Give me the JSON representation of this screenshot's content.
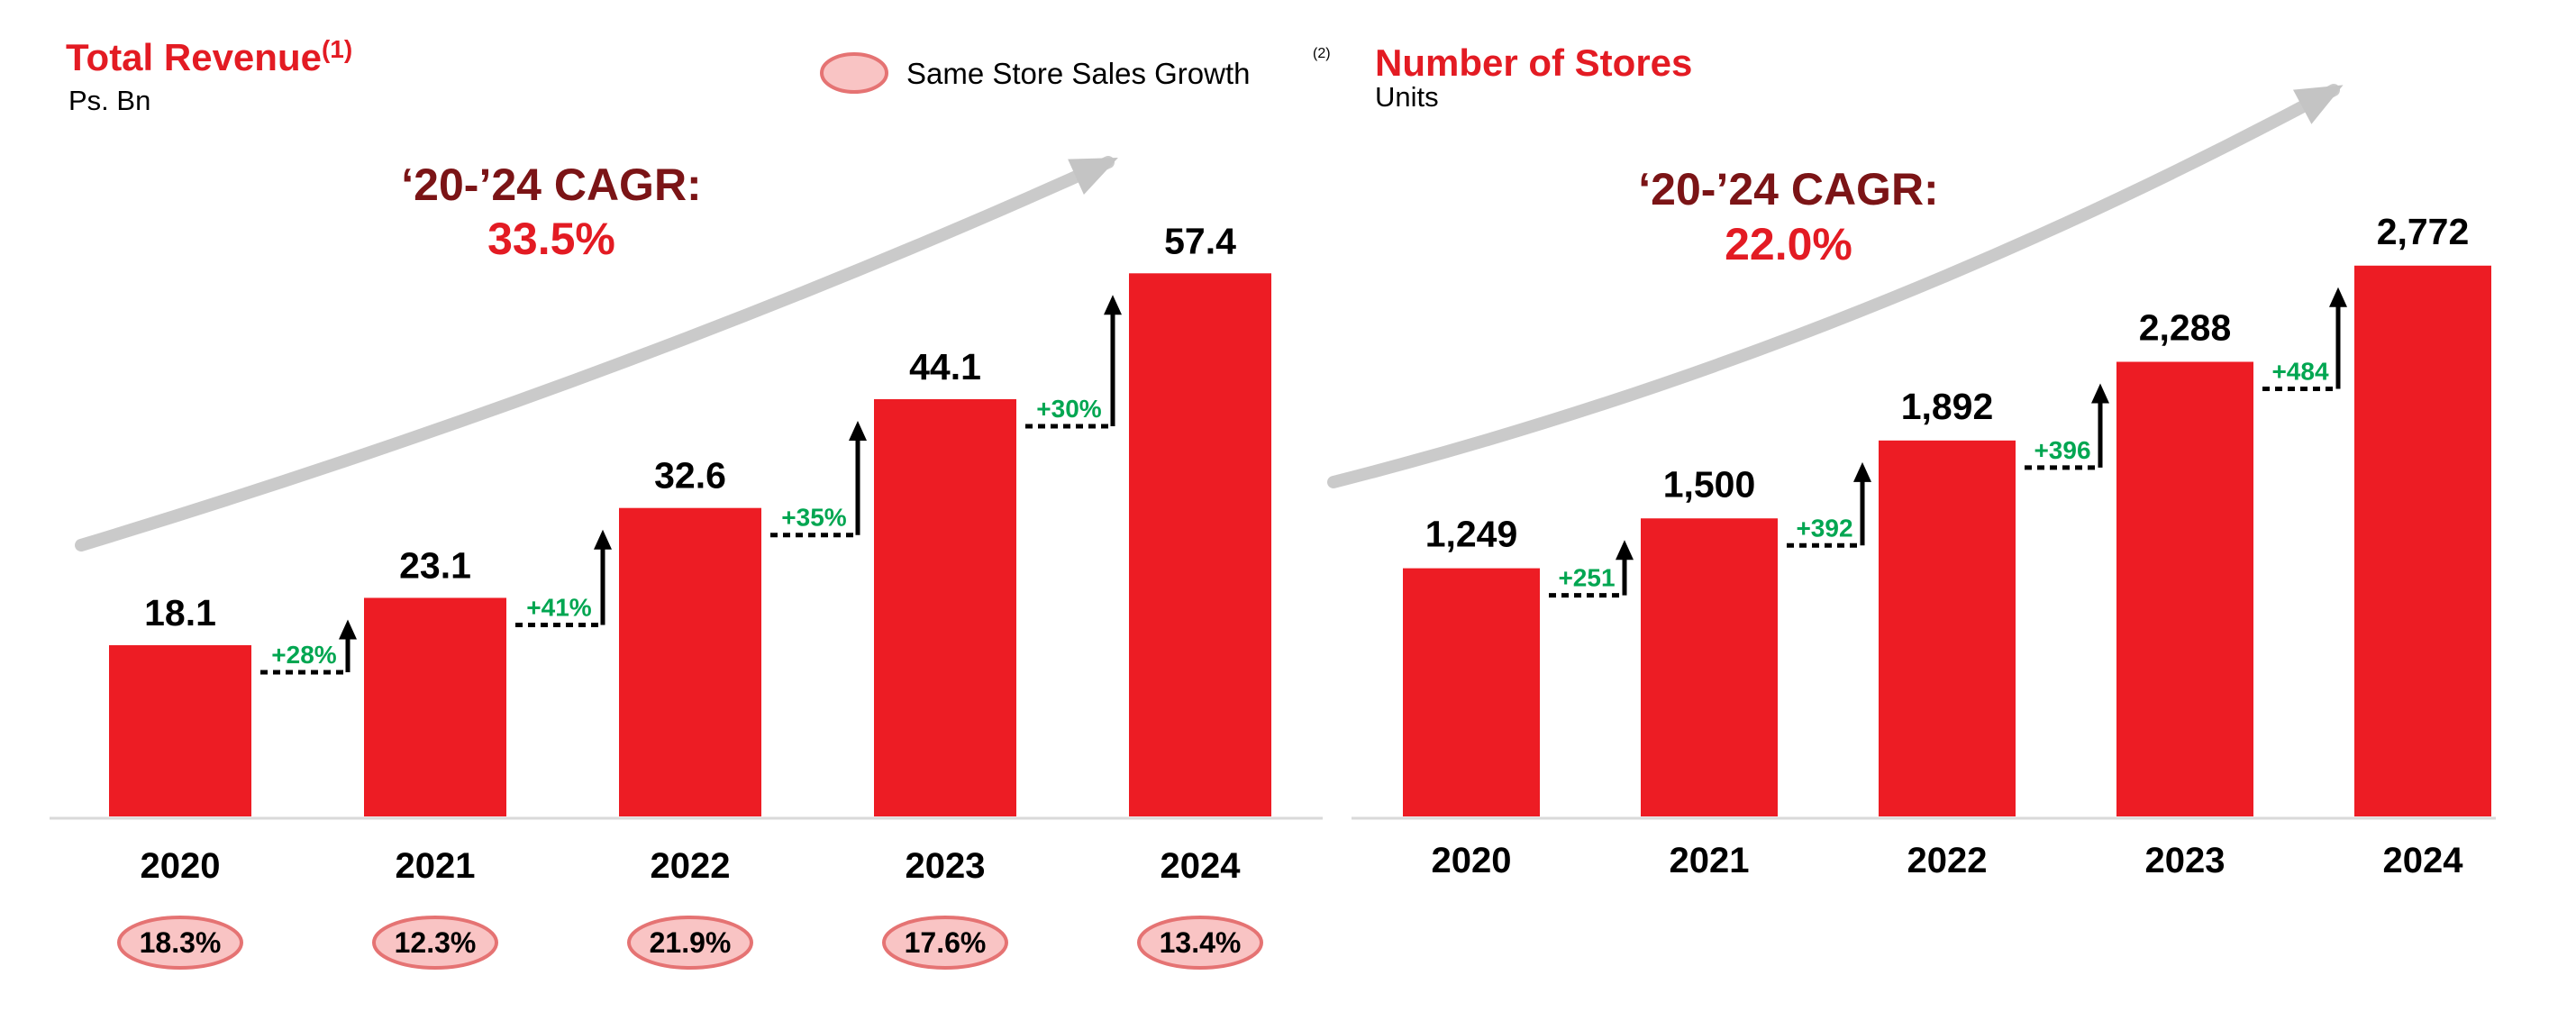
{
  "colors": {
    "bar": "#ED1C24",
    "title": "#E31B23",
    "cagr_label": "#7B1416",
    "cagr_value": "#E31B23",
    "delta": "#00A651",
    "oval_fill": "#F9C4C4",
    "oval_stroke": "#E57373",
    "trend_arrow": "#C4C4C4",
    "baseline": "#D9D9D9"
  },
  "legend": {
    "label": "Same Store Sales Growth",
    "note": "(2)"
  },
  "chart_data": [
    {
      "type": "bar",
      "title": "Total Revenue",
      "title_note": "(1)",
      "subtitle": "Ps. Bn",
      "cagr_label": "‘20-’24 CAGR:",
      "cagr_value": "33.5%",
      "categories": [
        "2020",
        "2021",
        "2022",
        "2023",
        "2024"
      ],
      "values": [
        18.1,
        23.1,
        32.6,
        44.1,
        57.4
      ],
      "value_labels": [
        "18.1",
        "23.1",
        "32.6",
        "44.1",
        "57.4"
      ],
      "growth_labels": [
        "+28%",
        "+41%",
        "+35%",
        "+30%"
      ],
      "same_store_sales_growth": [
        "18.3%",
        "12.3%",
        "21.9%",
        "17.6%",
        "13.4%"
      ],
      "ylim": [
        0,
        70
      ],
      "grid": false
    },
    {
      "type": "bar",
      "title": "Number of Stores",
      "subtitle": "Units",
      "cagr_label": "‘20-’24 CAGR:",
      "cagr_value": "22.0%",
      "categories": [
        "2020",
        "2021",
        "2022",
        "2023",
        "2024"
      ],
      "values": [
        1249,
        1500,
        1892,
        2288,
        2772
      ],
      "value_labels": [
        "1,249",
        "1,500",
        "1,892",
        "2,288",
        "2,772"
      ],
      "growth_labels": [
        "+251",
        "+392",
        "+396",
        "+484"
      ],
      "ylim": [
        0,
        3400
      ],
      "grid": false
    }
  ]
}
